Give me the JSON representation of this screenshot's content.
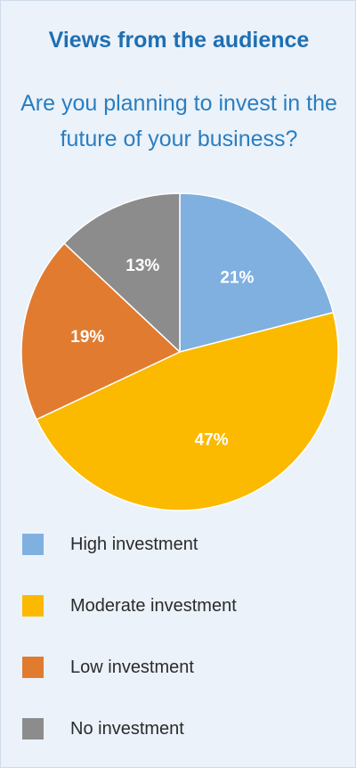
{
  "chart_data": {
    "type": "pie",
    "title": "Views from the audience",
    "subtitle": "Are you planning to invest in the future of your business?",
    "categories": [
      "High investment",
      "Moderate investment",
      "Low investment",
      "No investment"
    ],
    "values": [
      21,
      47,
      19,
      13
    ],
    "value_labels": [
      "21%",
      "47%",
      "19%",
      "13%"
    ],
    "colors": [
      "#7fb0e0",
      "#fbb900",
      "#e07b30",
      "#8c8c8c"
    ],
    "legend_position": "bottom",
    "start_angle": "12 o'clock",
    "direction": "clockwise"
  }
}
